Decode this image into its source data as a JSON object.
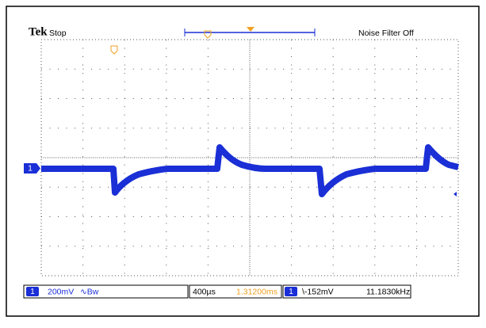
{
  "header": {
    "brand": "Tek",
    "status": "Stop",
    "filter": "Noise Filter Off"
  },
  "channel_marker": "1",
  "footer": {
    "channel": "1",
    "scale": "200mV",
    "bandwidth": "∿Bw",
    "timebase": "400µs",
    "position": "1.31200ms",
    "trigger_channel": "1",
    "trigger_level": "\\-152mV",
    "frequency": "11.1830kHz"
  }
}
